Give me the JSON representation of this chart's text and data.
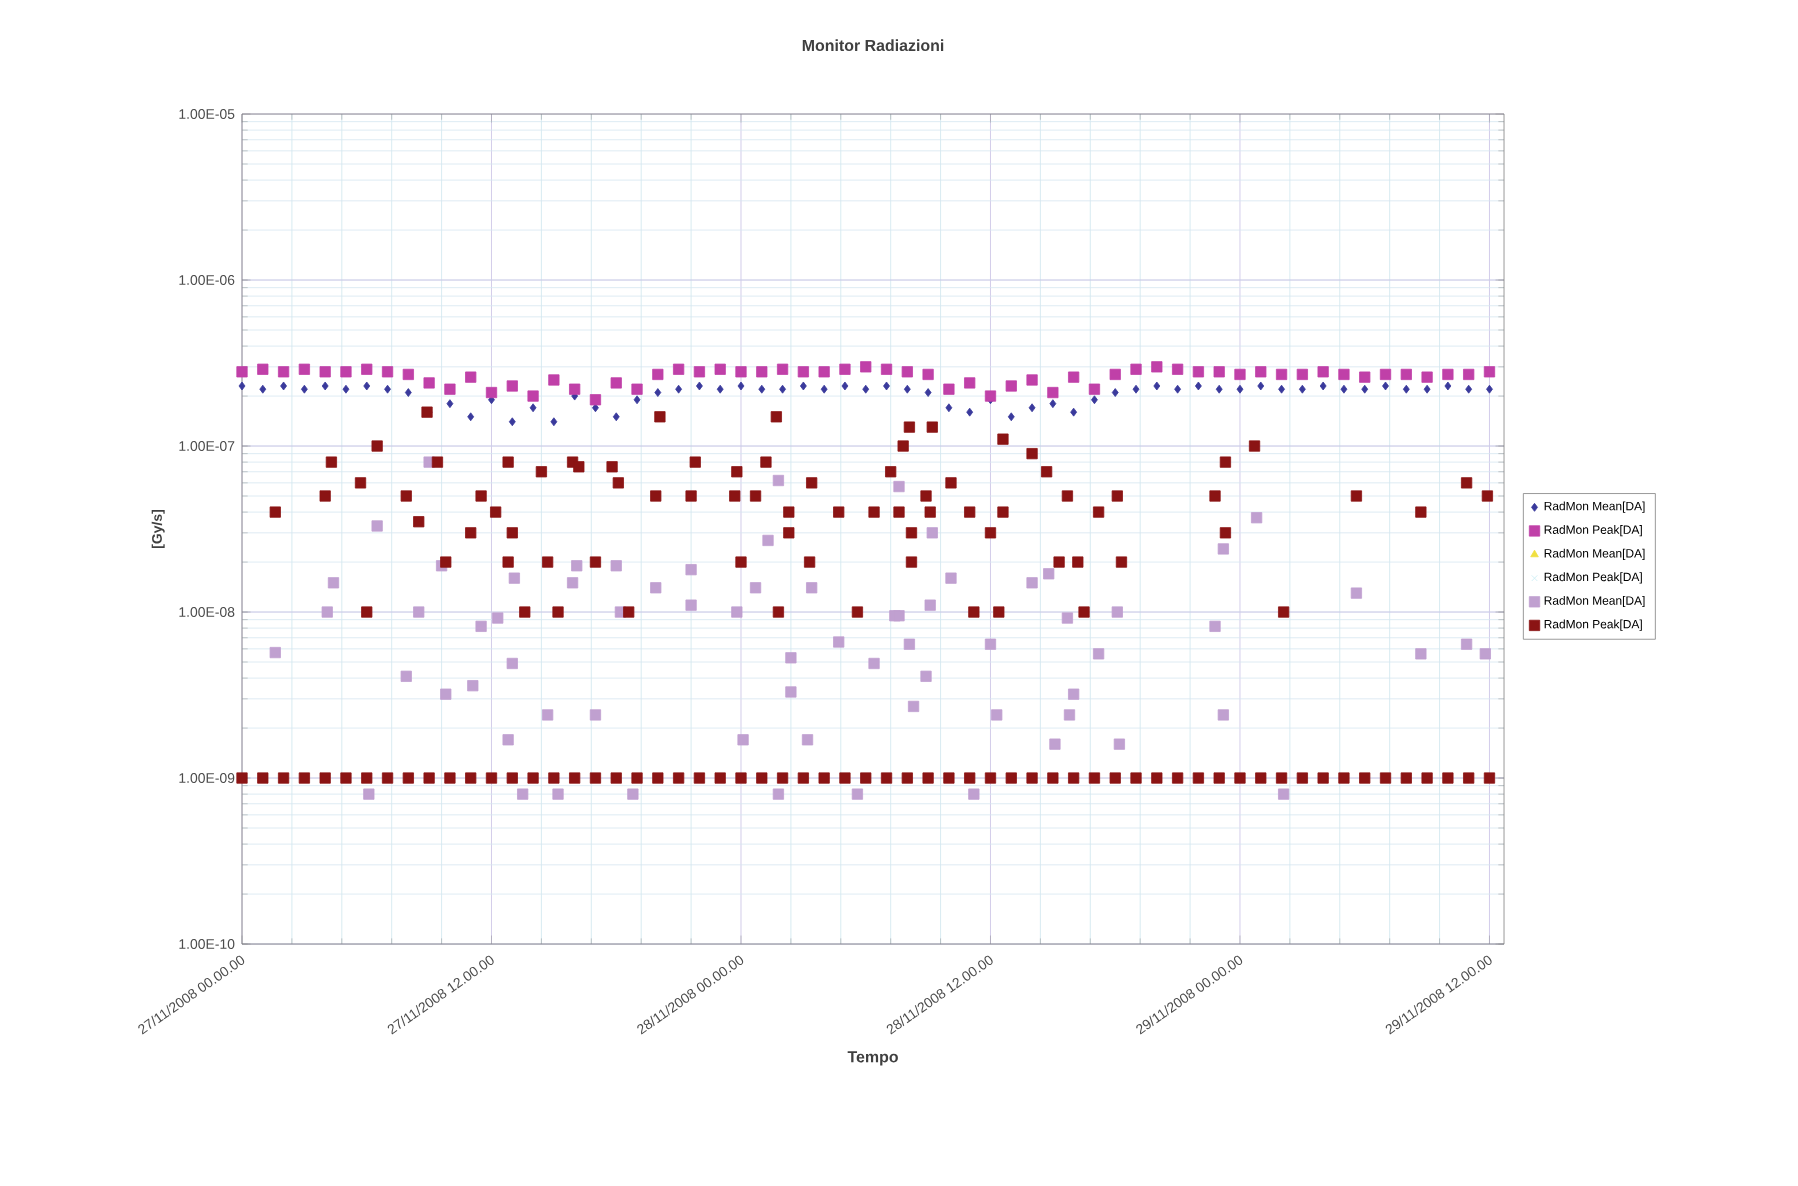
{
  "chart_data": {
    "type": "scatter",
    "title": "Monitor Radiazioni",
    "xlabel": "Tempo",
    "ylabel": "[Gy/s]",
    "log": "y",
    "grid": true,
    "legend": "right",
    "xlim": [
      "2008-11-27T00:00",
      "2008-11-29T12:42"
    ],
    "ylim": [
      1e-10,
      1e-05
    ],
    "xticks": [
      {
        "value": "2008-11-27T00:00",
        "label": "27/11/2008 00.00.00"
      },
      {
        "value": "2008-11-27T12:00",
        "label": "27/11/2008 12.00.00"
      },
      {
        "value": "2008-11-28T00:00",
        "label": "28/11/2008 00.00.00"
      },
      {
        "value": "2008-11-28T12:00",
        "label": "28/11/2008 12.00.00"
      },
      {
        "value": "2008-11-29T00:00",
        "label": "29/11/2008 00.00.00"
      },
      {
        "value": "2008-11-29T12:00",
        "label": "29/11/2008 12.00.00"
      }
    ],
    "yticks": [
      {
        "value": 1e-10,
        "label": "1.00E-10"
      },
      {
        "value": 1e-09,
        "label": "1.00E-09"
      },
      {
        "value": 1e-08,
        "label": "1.00E-08"
      },
      {
        "value": 1e-07,
        "label": "1.00E-07"
      },
      {
        "value": 1e-06,
        "label": "1.00E-06"
      },
      {
        "value": 1e-05,
        "label": "1.00E-05"
      }
    ],
    "x": [
      "2008-11-27T00:00",
      "2008-11-27T01:00",
      "2008-11-27T02:00",
      "2008-11-27T03:00",
      "2008-11-27T04:00",
      "2008-11-27T05:00",
      "2008-11-27T06:00",
      "2008-11-27T07:00",
      "2008-11-27T08:00",
      "2008-11-27T09:00",
      "2008-11-27T10:00",
      "2008-11-27T11:00",
      "2008-11-27T12:00",
      "2008-11-27T13:00",
      "2008-11-27T14:00",
      "2008-11-27T15:00",
      "2008-11-27T16:00",
      "2008-11-27T17:00",
      "2008-11-27T18:00",
      "2008-11-27T19:00",
      "2008-11-27T20:00",
      "2008-11-27T21:00",
      "2008-11-27T22:00",
      "2008-11-27T23:00",
      "2008-11-28T00:00",
      "2008-11-28T01:00",
      "2008-11-28T02:00",
      "2008-11-28T03:00",
      "2008-11-28T04:00",
      "2008-11-28T05:00",
      "2008-11-28T06:00",
      "2008-11-28T07:00",
      "2008-11-28T08:00",
      "2008-11-28T09:00",
      "2008-11-28T10:00",
      "2008-11-28T11:00",
      "2008-11-28T12:00",
      "2008-11-28T13:00",
      "2008-11-28T14:00",
      "2008-11-28T15:00",
      "2008-11-28T16:00",
      "2008-11-28T17:00",
      "2008-11-28T18:00",
      "2008-11-28T19:00",
      "2008-11-28T20:00",
      "2008-11-28T21:00",
      "2008-11-28T22:00",
      "2008-11-28T23:00",
      "2008-11-29T00:00",
      "2008-11-29T01:00",
      "2008-11-29T02:00",
      "2008-11-29T03:00",
      "2008-11-29T04:00",
      "2008-11-29T05:00",
      "2008-11-29T06:00",
      "2008-11-29T07:00",
      "2008-11-29T08:00",
      "2008-11-29T09:00",
      "2008-11-29T10:00",
      "2008-11-29T11:00",
      "2008-11-29T12:00"
    ],
    "series": [
      {
        "name": "RadMon Mean[DA]",
        "color": "#3a3a9c",
        "marker": "diamond",
        "values": [
          2.3e-07,
          2.2e-07,
          2.3e-07,
          2.2e-07,
          2.3e-07,
          2.2e-07,
          2.3e-07,
          2.2e-07,
          2.1e-07,
          1.6e-07,
          1.8e-07,
          1.5e-07,
          1.9e-07,
          1.4e-07,
          1.7e-07,
          1.4e-07,
          2e-07,
          1.7e-07,
          1.5e-07,
          1.9e-07,
          2.1e-07,
          2.2e-07,
          2.3e-07,
          2.2e-07,
          2.3e-07,
          2.2e-07,
          2.2e-07,
          2.3e-07,
          2.2e-07,
          2.3e-07,
          2.2e-07,
          2.3e-07,
          2.2e-07,
          2.1e-07,
          1.7e-07,
          1.6e-07,
          1.9e-07,
          1.5e-07,
          1.7e-07,
          1.8e-07,
          1.6e-07,
          1.9e-07,
          2.1e-07,
          2.2e-07,
          2.3e-07,
          2.2e-07,
          2.3e-07,
          2.2e-07,
          2.2e-07,
          2.3e-07,
          2.2e-07,
          2.2e-07,
          2.3e-07,
          2.2e-07,
          2.2e-07,
          2.3e-07,
          2.2e-07,
          2.2e-07,
          2.3e-07,
          2.2e-07,
          2.2e-07
        ]
      },
      {
        "name": "RadMon Peak[DA]",
        "color": "#c040a8",
        "marker": "square",
        "values": [
          2.8e-07,
          2.9e-07,
          2.8e-07,
          2.9e-07,
          2.8e-07,
          2.8e-07,
          2.9e-07,
          2.8e-07,
          2.7e-07,
          2.4e-07,
          2.2e-07,
          2.6e-07,
          2.1e-07,
          2.3e-07,
          2e-07,
          2.5e-07,
          2.2e-07,
          1.9e-07,
          2.4e-07,
          2.2e-07,
          2.7e-07,
          2.9e-07,
          2.8e-07,
          2.9e-07,
          2.8e-07,
          2.8e-07,
          2.9e-07,
          2.8e-07,
          2.8e-07,
          2.9e-07,
          3e-07,
          2.9e-07,
          2.8e-07,
          2.7e-07,
          2.2e-07,
          2.4e-07,
          2e-07,
          2.3e-07,
          2.5e-07,
          2.1e-07,
          2.6e-07,
          2.2e-07,
          2.7e-07,
          2.9e-07,
          3e-07,
          2.9e-07,
          2.8e-07,
          2.8e-07,
          2.7e-07,
          2.8e-07,
          2.7e-07,
          2.7e-07,
          2.8e-07,
          2.7e-07,
          2.6e-07,
          2.7e-07,
          2.7e-07,
          2.6e-07,
          2.7e-07,
          2.7e-07,
          2.8e-07
        ]
      },
      {
        "name": "RadMon Mean[DA]",
        "color": "#f0e040",
        "marker": "triangle",
        "values": [
          null,
          null,
          null,
          null,
          null,
          null,
          null,
          null,
          null,
          null,
          null,
          null,
          null,
          null,
          null,
          null,
          null,
          null,
          null,
          null,
          null,
          null,
          null,
          null,
          null,
          null,
          null,
          null,
          null,
          null,
          null,
          null,
          null,
          null,
          null,
          null,
          null,
          null,
          null,
          null,
          null,
          null,
          null,
          null,
          null,
          null,
          null,
          null,
          null,
          null,
          null,
          null,
          null,
          null,
          null,
          null,
          null,
          null,
          null,
          null,
          null
        ]
      },
      {
        "name": "RadMon Peak[DA]",
        "color": "#c8ecf4",
        "marker": "cross",
        "values": [
          null,
          null,
          null,
          null,
          null,
          null,
          null,
          null,
          null,
          null,
          null,
          null,
          null,
          null,
          null,
          null,
          null,
          null,
          null,
          null,
          null,
          null,
          null,
          null,
          null,
          null,
          null,
          null,
          null,
          null,
          null,
          null,
          null,
          null,
          null,
          null,
          null,
          null,
          null,
          null,
          null,
          null,
          null,
          null,
          null,
          null,
          null,
          null,
          null,
          null,
          null,
          null,
          null,
          null,
          null,
          null,
          null,
          null,
          null,
          null,
          null
        ]
      },
      {
        "name": "RadMon Mean[DA]",
        "color": "#c0a0d0",
        "marker": "square",
        "x": [
          "2008-11-27T01:36",
          "2008-11-27T04:24",
          "2008-11-27T04:06",
          "2008-11-27T06:30",
          "2008-11-27T07:54",
          "2008-11-27T08:30",
          "2008-11-27T09:00",
          "2008-11-27T09:48",
          "2008-11-27T11:06",
          "2008-11-27T09:36",
          "2008-11-27T11:30",
          "2008-11-27T12:18",
          "2008-11-27T13:00",
          "2008-11-27T12:48",
          "2008-11-27T13:06",
          "2008-11-27T14:42",
          "2008-11-27T16:06",
          "2008-11-27T15:54",
          "2008-11-27T17:00",
          "2008-11-27T18:00",
          "2008-11-27T18:12",
          "2008-11-27T19:54",
          "2008-11-27T21:36",
          "2008-11-27T21:36",
          "2008-11-27T23:48",
          "2008-11-28T00:06",
          "2008-11-28T00:42",
          "2008-11-28T01:18",
          "2008-11-28T01:48",
          "2008-11-28T02:24",
          "2008-11-28T02:24",
          "2008-11-28T03:12",
          "2008-11-28T03:24",
          "2008-11-28T04:42",
          "2008-11-28T06:24",
          "2008-11-28T07:24",
          "2008-11-27T06:06",
          "2008-11-27T13:30",
          "2008-11-27T15:12",
          "2008-11-27T18:48",
          "2008-11-28T01:48",
          "2008-11-28T05:36",
          "2008-11-28T07:36",
          "2008-11-28T07:36",
          "2008-11-28T08:06",
          "2008-11-28T08:54",
          "2008-11-28T08:18",
          "2008-11-28T09:12",
          "2008-11-28T10:06",
          "2008-11-28T09:06",
          "2008-11-28T12:00",
          "2008-11-28T12:18",
          "2008-11-28T14:00",
          "2008-11-28T14:48",
          "2008-11-28T15:42",
          "2008-11-28T16:00",
          "2008-11-28T15:48",
          "2008-11-28T15:06",
          "2008-11-28T17:12",
          "2008-11-28T18:06",
          "2008-11-28T18:12",
          "2008-11-28T22:48",
          "2008-11-28T23:12",
          "2008-11-28T23:12",
          "2008-11-29T00:48",
          "2008-11-29T05:36",
          "2008-11-29T08:42",
          "2008-11-29T10:54",
          "2008-11-29T11:48",
          "2008-11-28T11:12",
          "2008-11-29T02:06"
        ],
        "values": [
          5.7e-09,
          1.5e-08,
          1e-08,
          3.3e-08,
          4.1e-09,
          1e-08,
          8e-08,
          3.2e-09,
          3.6e-09,
          1.9e-08,
          8.2e-09,
          9.2e-09,
          4.9e-09,
          1.7e-09,
          1.6e-08,
          2.4e-09,
          1.9e-08,
          1.5e-08,
          2.4e-09,
          1.9e-08,
          1e-08,
          1.4e-08,
          1.8e-08,
          1.1e-08,
          1e-08,
          1.7e-09,
          1.4e-08,
          2.7e-08,
          6.2e-08,
          5.3e-09,
          3.3e-09,
          1.7e-09,
          1.4e-08,
          6.6e-09,
          4.9e-09,
          9.5e-09,
          8e-10,
          8e-10,
          8e-10,
          8e-10,
          8e-10,
          8e-10,
          5.7e-08,
          9.5e-09,
          6.4e-09,
          4.1e-09,
          2.7e-09,
          3e-08,
          1.6e-08,
          1.1e-08,
          6.4e-09,
          2.4e-09,
          1.5e-08,
          1.7e-08,
          9.2e-09,
          3.2e-09,
          2.4e-09,
          1.6e-09,
          5.6e-09,
          1e-08,
          1.6e-09,
          8.2e-09,
          2.4e-08,
          2.4e-09,
          3.7e-08,
          1.3e-08,
          5.6e-09,
          6.4e-09,
          5.6e-09,
          8e-10,
          8e-10
        ]
      },
      {
        "name": "RadMon Peak[DA]",
        "color": "#8b1414",
        "marker": "square",
        "x": [
          "2008-11-27T00:00",
          "2008-11-27T01:00",
          "2008-11-27T02:00",
          "2008-11-27T03:00",
          "2008-11-27T04:00",
          "2008-11-27T05:00",
          "2008-11-27T06:00",
          "2008-11-27T07:00",
          "2008-11-27T08:00",
          "2008-11-27T09:00",
          "2008-11-27T10:00",
          "2008-11-27T11:00",
          "2008-11-27T12:00",
          "2008-11-27T13:00",
          "2008-11-27T14:00",
          "2008-11-27T15:00",
          "2008-11-27T16:00",
          "2008-11-27T17:00",
          "2008-11-27T18:00",
          "2008-11-27T19:00",
          "2008-11-27T20:00",
          "2008-11-27T21:00",
          "2008-11-27T22:00",
          "2008-11-27T23:00",
          "2008-11-28T00:00",
          "2008-11-28T01:00",
          "2008-11-28T02:00",
          "2008-11-28T03:00",
          "2008-11-28T04:00",
          "2008-11-28T05:00",
          "2008-11-28T06:00",
          "2008-11-28T07:00",
          "2008-11-28T08:00",
          "2008-11-28T09:00",
          "2008-11-28T10:00",
          "2008-11-28T11:00",
          "2008-11-28T12:00",
          "2008-11-28T13:00",
          "2008-11-28T14:00",
          "2008-11-28T15:00",
          "2008-11-28T16:00",
          "2008-11-28T17:00",
          "2008-11-28T18:00",
          "2008-11-28T19:00",
          "2008-11-28T20:00",
          "2008-11-28T21:00",
          "2008-11-28T22:00",
          "2008-11-28T23:00",
          "2008-11-29T00:00",
          "2008-11-29T01:00",
          "2008-11-29T02:00",
          "2008-11-29T03:00",
          "2008-11-29T04:00",
          "2008-11-29T05:00",
          "2008-11-29T06:00",
          "2008-11-29T07:00",
          "2008-11-29T08:00",
          "2008-11-29T09:00",
          "2008-11-29T10:00",
          "2008-11-29T11:00",
          "2008-11-29T12:00",
          "2008-11-27T01:36",
          "2008-11-27T04:00",
          "2008-11-27T04:18",
          "2008-11-27T05:42",
          "2008-11-27T06:30",
          "2008-11-27T06:00",
          "2008-11-27T07:54",
          "2008-11-27T08:30",
          "2008-11-27T08:54",
          "2008-11-27T09:24",
          "2008-11-27T09:48",
          "2008-11-27T11:00",
          "2008-11-27T11:30",
          "2008-11-27T12:12",
          "2008-11-27T12:48",
          "2008-11-27T13:00",
          "2008-11-27T12:48",
          "2008-11-27T13:36",
          "2008-11-27T14:24",
          "2008-11-27T14:42",
          "2008-11-27T15:12",
          "2008-11-27T15:54",
          "2008-11-27T16:12",
          "2008-11-27T17:00",
          "2008-11-27T17:48",
          "2008-11-27T18:06",
          "2008-11-27T18:36",
          "2008-11-27T19:54",
          "2008-11-27T20:06",
          "2008-11-27T21:36",
          "2008-11-27T21:48",
          "2008-11-27T23:42",
          "2008-11-27T23:48",
          "2008-11-28T00:00",
          "2008-11-28T00:42",
          "2008-11-28T01:12",
          "2008-11-28T01:42",
          "2008-11-28T01:48",
          "2008-11-28T02:18",
          "2008-11-28T02:18",
          "2008-11-28T03:18",
          "2008-11-28T03:24",
          "2008-11-28T04:42",
          "2008-11-28T05:36",
          "2008-11-28T06:24",
          "2008-11-28T07:12",
          "2008-11-28T07:36",
          "2008-11-28T07:48",
          "2008-11-28T08:06",
          "2008-11-28T09:12",
          "2008-11-28T08:12",
          "2008-11-28T08:12",
          "2008-11-28T08:54",
          "2008-11-28T09:06",
          "2008-11-28T10:06",
          "2008-11-28T11:00",
          "2008-11-28T11:12",
          "2008-11-28T12:00",
          "2008-11-28T12:24",
          "2008-11-28T12:36",
          "2008-11-28T12:36",
          "2008-11-28T14:00",
          "2008-11-28T14:42",
          "2008-11-28T15:18",
          "2008-11-28T16:12",
          "2008-11-28T15:42",
          "2008-11-28T16:30",
          "2008-11-28T17:12",
          "2008-11-28T18:06",
          "2008-11-28T18:18",
          "2008-11-28T22:48",
          "2008-11-28T23:18",
          "2008-11-28T23:18",
          "2008-11-29T00:42",
          "2008-11-29T02:06",
          "2008-11-29T05:36",
          "2008-11-29T08:42",
          "2008-11-29T10:54",
          "2008-11-29T11:54"
        ],
        "values": [
          1e-09,
          1e-09,
          1e-09,
          1e-09,
          1e-09,
          1e-09,
          1e-09,
          1e-09,
          1e-09,
          1e-09,
          1e-09,
          1e-09,
          1e-09,
          1e-09,
          1e-09,
          1e-09,
          1e-09,
          1e-09,
          1e-09,
          1e-09,
          1e-09,
          1e-09,
          1e-09,
          1e-09,
          1e-09,
          1e-09,
          1e-09,
          1e-09,
          1e-09,
          1e-09,
          1e-09,
          1e-09,
          1e-09,
          1e-09,
          1e-09,
          1e-09,
          1e-09,
          1e-09,
          1e-09,
          1e-09,
          1e-09,
          1e-09,
          1e-09,
          1e-09,
          1e-09,
          1e-09,
          1e-09,
          1e-09,
          1e-09,
          1e-09,
          1e-09,
          1e-09,
          1e-09,
          1e-09,
          1e-09,
          1e-09,
          1e-09,
          1e-09,
          1e-09,
          1e-09,
          1e-09,
          4e-08,
          5e-08,
          8e-08,
          6e-08,
          1e-07,
          1e-08,
          5e-08,
          3.5e-08,
          1.6e-07,
          8e-08,
          2e-08,
          3e-08,
          5e-08,
          4e-08,
          8e-08,
          3e-08,
          2e-08,
          1e-08,
          7e-08,
          2e-08,
          1e-08,
          8e-08,
          7.5e-08,
          2e-08,
          7.5e-08,
          6e-08,
          1e-08,
          5e-08,
          1.5e-07,
          5e-08,
          8e-08,
          5e-08,
          7e-08,
          2e-08,
          5e-08,
          8e-08,
          1.5e-07,
          1e-08,
          4e-08,
          3e-08,
          2e-08,
          6e-08,
          4e-08,
          1e-08,
          4e-08,
          7e-08,
          4e-08,
          1e-07,
          1.3e-07,
          1.3e-07,
          3e-08,
          2e-08,
          5e-08,
          4e-08,
          6e-08,
          4e-08,
          1e-08,
          3e-08,
          1e-08,
          1.1e-07,
          4e-08,
          9e-08,
          7e-08,
          2e-08,
          2e-08,
          5e-08,
          1e-08,
          4e-08,
          5e-08,
          2e-08,
          5e-08,
          8e-08,
          3e-08,
          1e-07,
          1e-08,
          5e-08,
          4e-08,
          6e-08,
          5e-08
        ]
      }
    ]
  }
}
